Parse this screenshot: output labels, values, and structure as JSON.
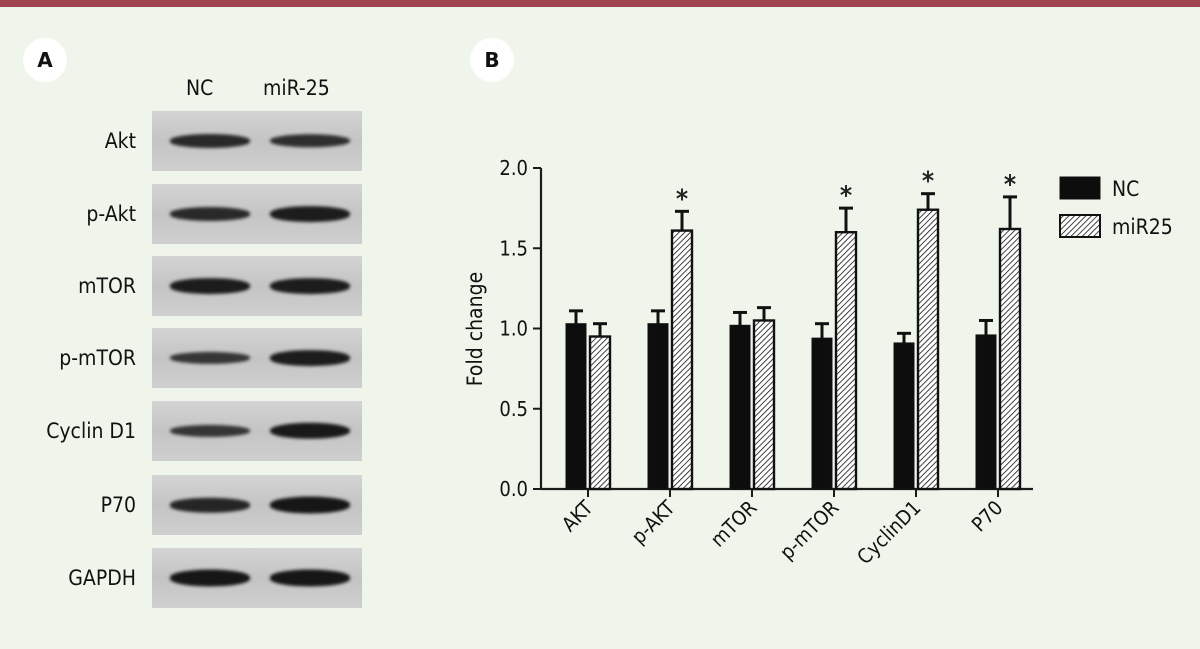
{
  "panel_a": {
    "badge": "A",
    "lanes": [
      "NC",
      "miR-25"
    ],
    "rows": [
      {
        "label": "Akt",
        "nc_intensity": 0.75,
        "mir_intensity": 0.7
      },
      {
        "label": "p-Akt",
        "nc_intensity": 0.75,
        "mir_intensity": 0.9
      },
      {
        "label": "mTOR",
        "nc_intensity": 0.9,
        "mir_intensity": 0.9
      },
      {
        "label": "p-mTOR",
        "nc_intensity": 0.6,
        "mir_intensity": 0.9
      },
      {
        "label": "Cyclin D1",
        "nc_intensity": 0.6,
        "mir_intensity": 0.95
      },
      {
        "label": "P70",
        "nc_intensity": 0.8,
        "mir_intensity": 1.0
      },
      {
        "label": "GAPDH",
        "nc_intensity": 1.0,
        "mir_intensity": 1.0
      }
    ]
  },
  "panel_b": {
    "badge": "B"
  },
  "chart_data": {
    "type": "bar",
    "ylabel": "Fold change",
    "xlabel": "",
    "categories": [
      "AKT",
      "p-AKT",
      "mTOR",
      "p-mTOR",
      "CyclinD1",
      "P70"
    ],
    "ylim": [
      0,
      2.0
    ],
    "yticks": [
      "0.0",
      "0.5",
      "1.0",
      "1.5",
      "2.0"
    ],
    "legend_position": "right",
    "series": [
      {
        "name": "NC",
        "values": [
          1.03,
          1.03,
          1.02,
          0.94,
          0.91,
          0.96
        ],
        "errors": [
          0.08,
          0.08,
          0.08,
          0.09,
          0.06,
          0.09
        ],
        "fill": "solid",
        "color": "#0d0d0d"
      },
      {
        "name": "miR25",
        "values": [
          0.95,
          1.61,
          1.05,
          1.6,
          1.74,
          1.62
        ],
        "errors": [
          0.08,
          0.12,
          0.08,
          0.15,
          0.1,
          0.2
        ],
        "fill": "hatched",
        "color": "#0d0d0d"
      }
    ],
    "significance_marker": "*",
    "significant": [
      false,
      true,
      false,
      true,
      true,
      true
    ]
  },
  "colors": {
    "top_bar": "#a04450",
    "background": "#f0f5ec",
    "axis": "#1a1a1a"
  }
}
